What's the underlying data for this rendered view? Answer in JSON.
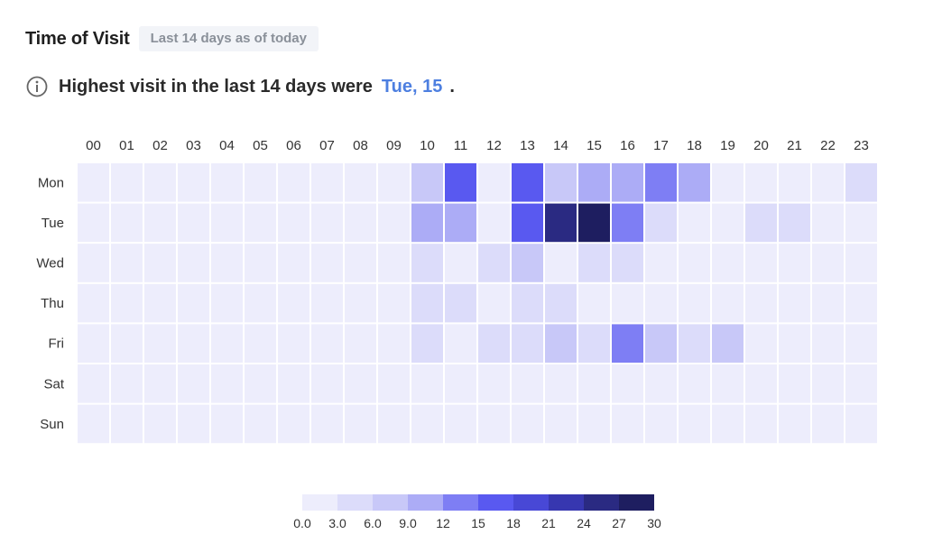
{
  "header": {
    "title": "Time of Visit",
    "badge": "Last 14 days as of today"
  },
  "summary": {
    "prefix": "Highest visit in the last 14 days were",
    "highlight": "Tue, 15",
    "suffix": ".",
    "icon": "info-icon"
  },
  "colors": {
    "highlight": "#4d7fe0",
    "scale": [
      "#ededfc",
      "#dcdcfa",
      "#c8c8f8",
      "#acacf6",
      "#7e7ef4",
      "#5959f0",
      "#4848d6",
      "#3737b0",
      "#2a2a82",
      "#1e1e60"
    ]
  },
  "chart_data": {
    "type": "heatmap",
    "x": [
      "00",
      "01",
      "02",
      "03",
      "04",
      "05",
      "06",
      "07",
      "08",
      "09",
      "10",
      "11",
      "12",
      "13",
      "14",
      "15",
      "16",
      "17",
      "18",
      "19",
      "20",
      "21",
      "22",
      "23"
    ],
    "y": [
      "Mon",
      "Tue",
      "Wed",
      "Thu",
      "Fri",
      "Sat",
      "Sun"
    ],
    "values": [
      [
        1,
        1,
        1,
        1,
        1,
        1,
        1,
        1,
        1,
        1,
        6,
        16,
        1,
        16,
        6,
        9,
        10,
        13,
        9,
        1,
        1,
        1,
        1,
        4
      ],
      [
        1,
        1,
        1,
        1,
        1,
        1,
        1,
        1,
        1,
        1,
        10,
        9,
        1,
        16,
        26,
        28,
        13,
        4,
        1,
        1,
        4,
        4,
        1,
        1
      ],
      [
        1,
        1,
        1,
        1,
        1,
        1,
        1,
        1,
        1,
        1,
        4,
        1,
        4,
        6,
        1,
        4,
        4,
        1,
        1,
        1,
        1,
        1,
        1,
        1
      ],
      [
        1,
        1,
        1,
        1,
        1,
        1,
        1,
        1,
        1,
        1,
        4,
        4,
        1,
        4,
        4,
        1,
        1,
        1,
        1,
        1,
        1,
        1,
        1,
        1
      ],
      [
        1,
        1,
        1,
        1,
        1,
        1,
        1,
        1,
        1,
        1,
        4,
        1,
        4,
        4,
        6,
        4,
        13,
        6,
        4,
        6,
        1,
        1,
        1,
        1
      ],
      [
        1,
        1,
        1,
        1,
        1,
        1,
        1,
        1,
        1,
        1,
        1,
        1,
        1,
        1,
        1,
        1,
        1,
        1,
        1,
        1,
        1,
        1,
        1,
        1
      ],
      [
        1,
        1,
        1,
        1,
        1,
        1,
        1,
        1,
        1,
        1,
        1,
        1,
        1,
        1,
        1,
        1,
        1,
        1,
        1,
        1,
        1,
        1,
        1,
        1
      ]
    ],
    "colorbar_ticks": [
      "0.0",
      "3.0",
      "6.0",
      "9.0",
      "12",
      "15",
      "18",
      "21",
      "24",
      "27",
      "30"
    ],
    "colorbar_range": [
      0,
      30
    ]
  }
}
